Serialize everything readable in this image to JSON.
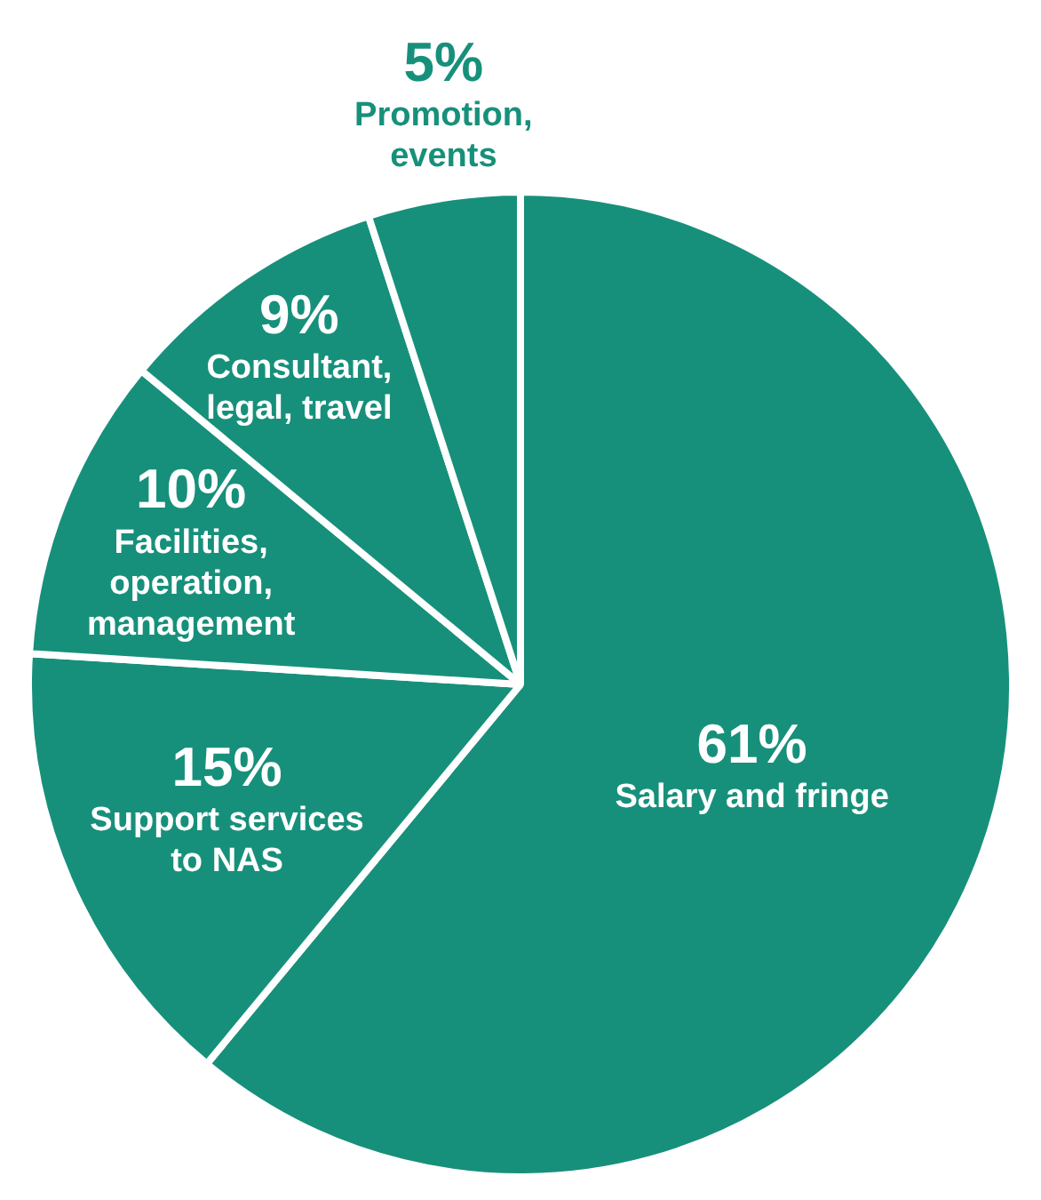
{
  "chart_data": {
    "type": "pie",
    "categories": [
      "Salary and fringe",
      "Support services to NAS",
      "Facilities, operation, management",
      "Consultant, legal, travel",
      "Promotion, events"
    ],
    "values": [
      61,
      15,
      10,
      9,
      5
    ],
    "value_labels": [
      "61%",
      "15%",
      "10%",
      "9%",
      "5%"
    ],
    "colors": [
      "#17907b",
      "#17907b",
      "#17907b",
      "#17907b",
      "#17907b"
    ],
    "legend": false
  }
}
